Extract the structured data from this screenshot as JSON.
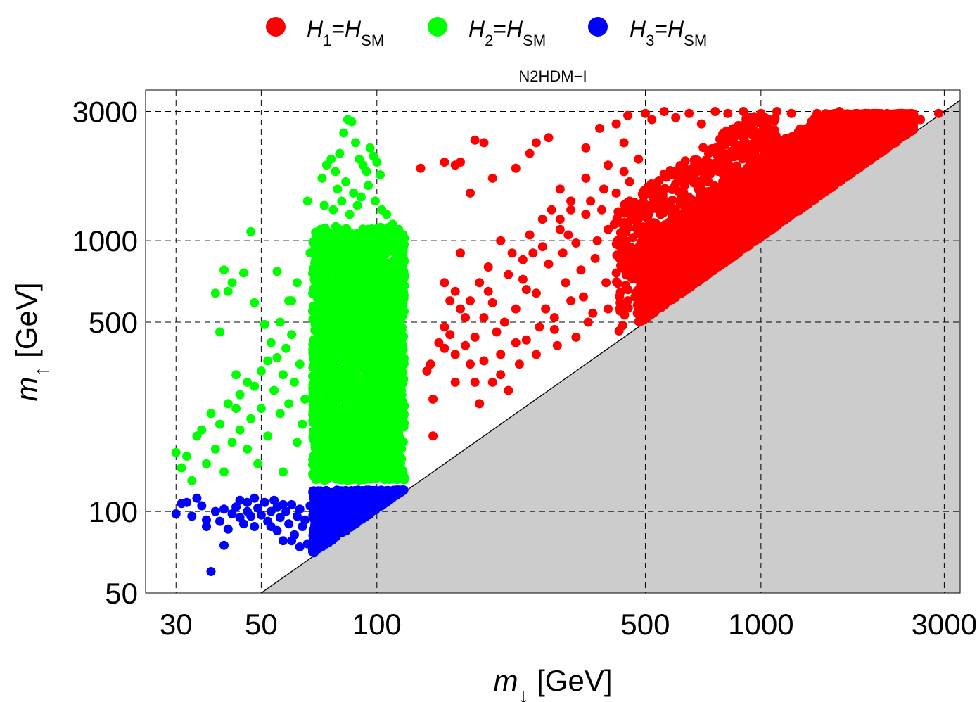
{
  "chart_data": {
    "type": "scatter",
    "title": "N2HDM−I",
    "xlabel": {
      "base": "m",
      "sub": "↓",
      "unit": " [GeV]"
    },
    "ylabel": {
      "base": "m",
      "sub": "↑",
      "unit": " [GeV]"
    },
    "x_scale": "log",
    "y_scale": "log",
    "xlim": [
      25,
      3300
    ],
    "ylim": [
      50,
      3600
    ],
    "x_ticks": [
      30,
      50,
      100,
      500,
      1000,
      3000
    ],
    "x_tick_labels": [
      "30",
      "50",
      "100",
      "500",
      "1000",
      "3000"
    ],
    "y_ticks": [
      50,
      100,
      500,
      1000,
      3000
    ],
    "y_tick_labels": [
      "50",
      "100",
      "500",
      "1000",
      "3000"
    ],
    "grid": true,
    "excluded_region": {
      "description": "m_up < m_down",
      "color": "#cccccc"
    },
    "legend": {
      "placement": "top-center",
      "entries": [
        {
          "id": "h1",
          "H": "H",
          "i": "1",
          "eq": "=",
          "sm_base": "H",
          "sm_sub": "SM",
          "color": "#ff0000"
        },
        {
          "id": "h2",
          "H": "H",
          "i": "2",
          "eq": "=",
          "sm_base": "H",
          "sm_sub": "SM",
          "color": "#00ff00"
        },
        {
          "id": "h3",
          "H": "H",
          "i": "3",
          "eq": "=",
          "sm_base": "H",
          "sm_sub": "SM",
          "color": "#0000ff"
        }
      ]
    },
    "series": [
      {
        "name": "H1=HSM",
        "color": "#ff0000",
        "dense_region": {
          "x_range": [
            480,
            2500
          ],
          "band_above_diagonal_factor": [
            1.0,
            2.0
          ]
        },
        "points": [
          [
            130,
            1850
          ],
          [
            140,
            190
          ],
          [
            150,
            1950
          ],
          [
            160,
            1900
          ],
          [
            165,
            1950
          ],
          [
            180,
            2350
          ],
          [
            190,
            2300
          ],
          [
            175,
            1500
          ],
          [
            200,
            1700
          ],
          [
            230,
            1850
          ],
          [
            250,
            2100
          ],
          [
            260,
            2300
          ],
          [
            280,
            2400
          ],
          [
            300,
            1550
          ],
          [
            320,
            1400
          ],
          [
            350,
            2200
          ],
          [
            380,
            2600
          ],
          [
            420,
            2700
          ],
          [
            450,
            2900
          ],
          [
            500,
            2950
          ],
          [
            520,
            2800
          ],
          [
            560,
            3000
          ],
          [
            600,
            2850
          ],
          [
            650,
            2950
          ],
          [
            700,
            2700
          ],
          [
            760,
            3000
          ],
          [
            820,
            2950
          ],
          [
            900,
            3000
          ],
          [
            1000,
            2950
          ],
          [
            1100,
            3000
          ],
          [
            1200,
            2950
          ],
          [
            1400,
            2950
          ],
          [
            1600,
            3000
          ],
          [
            1800,
            2900
          ],
          [
            2000,
            2950
          ],
          [
            2300,
            2900
          ],
          [
            2600,
            2800
          ],
          [
            2900,
            2950
          ],
          [
            135,
            330
          ],
          [
            138,
            350
          ],
          [
            145,
            420
          ],
          [
            150,
            480
          ],
          [
            155,
            600
          ],
          [
            160,
            650
          ],
          [
            165,
            560
          ],
          [
            170,
            410
          ],
          [
            175,
            350
          ],
          [
            180,
            300
          ],
          [
            185,
            700
          ],
          [
            190,
            520
          ],
          [
            195,
            800
          ],
          [
            200,
            300
          ],
          [
            205,
            460
          ],
          [
            210,
            380
          ],
          [
            220,
            280
          ],
          [
            225,
            900
          ],
          [
            230,
            560
          ],
          [
            240,
            720
          ],
          [
            245,
            430
          ],
          [
            250,
            1050
          ],
          [
            260,
            640
          ],
          [
            270,
            1200
          ],
          [
            280,
            820
          ],
          [
            290,
            520
          ],
          [
            300,
            1100
          ],
          [
            310,
            700
          ],
          [
            320,
            1300
          ],
          [
            330,
            980
          ],
          [
            345,
            620
          ],
          [
            360,
            1400
          ],
          [
            370,
            860
          ],
          [
            390,
            1550
          ],
          [
            400,
            1100
          ],
          [
            420,
            760
          ],
          [
            440,
            1800
          ],
          [
            460,
            1250
          ],
          [
            470,
            900
          ],
          [
            480,
            2000
          ],
          [
            150,
            400
          ],
          [
            155,
            450
          ],
          [
            160,
            380
          ],
          [
            170,
            520
          ],
          [
            180,
            440
          ],
          [
            190,
            360
          ],
          [
            200,
            590
          ],
          [
            215,
            500
          ],
          [
            230,
            420
          ],
          [
            245,
            660
          ],
          [
            260,
            380
          ],
          [
            275,
            560
          ],
          [
            290,
            470
          ],
          [
            305,
            900
          ],
          [
            320,
            600
          ],
          [
            340,
            780
          ],
          [
            355,
            500
          ],
          [
            375,
            1000
          ],
          [
            395,
            700
          ],
          [
            415,
            1150
          ],
          [
            435,
            850
          ],
          [
            455,
            1400
          ],
          [
            470,
            620
          ],
          [
            140,
            260
          ],
          [
            160,
            300
          ],
          [
            185,
            250
          ],
          [
            210,
            320
          ],
          [
            235,
            350
          ],
          [
            265,
            480
          ],
          [
            295,
            410
          ],
          [
            330,
            440
          ],
          [
            365,
            540
          ],
          [
            400,
            560
          ],
          [
            430,
            590
          ],
          [
            450,
            600
          ],
          [
            210,
            1000
          ],
          [
            240,
            850
          ],
          [
            270,
            950
          ],
          [
            300,
            1200
          ],
          [
            350,
            1700
          ],
          [
            400,
            1900
          ],
          [
            440,
            2300
          ],
          [
            150,
            700
          ],
          [
            165,
            900
          ],
          [
            175,
            600
          ],
          [
            195,
            650
          ],
          [
            220,
            750
          ],
          [
            255,
            900
          ],
          [
            285,
            1300
          ],
          [
            315,
            1050
          ],
          [
            350,
            1250
          ],
          [
            385,
            1300
          ],
          [
            420,
            1500
          ],
          [
            455,
            1650
          ]
        ]
      },
      {
        "name": "H2=HSM",
        "color": "#00ff00",
        "dense_region": {
          "x_range": [
            68,
            118
          ],
          "y_range": [
            130,
            1100
          ]
        },
        "points": [
          [
            30,
            165
          ],
          [
            31,
            145
          ],
          [
            32,
            160
          ],
          [
            33,
            130
          ],
          [
            34,
            190
          ],
          [
            35,
            200
          ],
          [
            36,
            150
          ],
          [
            37,
            230
          ],
          [
            38,
            170
          ],
          [
            38,
            640
          ],
          [
            39,
            210
          ],
          [
            40,
            780
          ],
          [
            40,
            140
          ],
          [
            41,
            650
          ],
          [
            41,
            250
          ],
          [
            42,
            180
          ],
          [
            42,
            700
          ],
          [
            43,
            240
          ],
          [
            44,
            200
          ],
          [
            44,
            270
          ],
          [
            45,
            760
          ],
          [
            46,
            170
          ],
          [
            46,
            300
          ],
          [
            47,
            1080
          ],
          [
            47,
            220
          ],
          [
            48,
            590
          ],
          [
            48,
            290
          ],
          [
            49,
            150
          ],
          [
            50,
            330
          ],
          [
            50,
            240
          ],
          [
            51,
            490
          ],
          [
            52,
            360
          ],
          [
            52,
            190
          ],
          [
            53,
            420
          ],
          [
            54,
            280
          ],
          [
            55,
            770
          ],
          [
            55,
            370
          ],
          [
            56,
            230
          ],
          [
            57,
            140
          ],
          [
            57,
            320
          ],
          [
            58,
            400
          ],
          [
            59,
            250
          ],
          [
            60,
            450
          ],
          [
            60,
            600
          ],
          [
            61,
            300
          ],
          [
            62,
            180
          ],
          [
            62,
            700
          ],
          [
            63,
            350
          ],
          [
            64,
            210
          ],
          [
            65,
            260
          ],
          [
            66,
            1400
          ],
          [
            67,
            900
          ],
          [
            39,
            460
          ],
          [
            43,
            320
          ],
          [
            56,
            500
          ],
          [
            59,
            600
          ],
          [
            72,
            1700
          ],
          [
            74,
            1900
          ],
          [
            76,
            2000
          ],
          [
            78,
            1800
          ],
          [
            80,
            2100
          ],
          [
            82,
            2500
          ],
          [
            84,
            2800
          ],
          [
            86,
            2750
          ],
          [
            88,
            2300
          ],
          [
            90,
            2000
          ],
          [
            92,
            1900
          ],
          [
            94,
            1800
          ],
          [
            96,
            2200
          ],
          [
            98,
            2050
          ],
          [
            100,
            1950
          ],
          [
            102,
            1750
          ],
          [
            79,
            1550
          ],
          [
            83,
            1650
          ],
          [
            87,
            1500
          ],
          [
            91,
            1450
          ],
          [
            95,
            1600
          ],
          [
            99,
            1400
          ],
          [
            103,
            1300
          ],
          [
            106,
            1250
          ],
          [
            110,
            1150
          ],
          [
            114,
            1100
          ],
          [
            117,
            1050
          ],
          [
            73,
            1350
          ],
          [
            77,
            1300
          ],
          [
            81,
            1400
          ],
          [
            85,
            1250
          ],
          [
            89,
            1350
          ]
        ]
      },
      {
        "name": "H3=HSM",
        "color": "#0000ff",
        "dense_region": {
          "x_range": [
            68,
            120
          ],
          "y_range": [
            70,
            120
          ]
        },
        "points": [
          [
            30,
            98
          ],
          [
            31,
            107
          ],
          [
            32,
            108
          ],
          [
            33,
            96
          ],
          [
            34,
            112
          ],
          [
            35,
            105
          ],
          [
            36,
            93
          ],
          [
            36,
            88
          ],
          [
            37,
            60
          ],
          [
            38,
            100
          ],
          [
            39,
            92
          ],
          [
            40,
            102
          ],
          [
            40,
            75
          ],
          [
            41,
            86
          ],
          [
            42,
            98
          ],
          [
            43,
            104
          ],
          [
            44,
            110
          ],
          [
            44,
            95
          ],
          [
            45,
            90
          ],
          [
            46,
            108
          ],
          [
            46,
            100
          ],
          [
            47,
            96
          ],
          [
            48,
            112
          ],
          [
            48,
            88
          ],
          [
            49,
            103
          ],
          [
            50,
            97
          ],
          [
            51,
            108
          ],
          [
            52,
            92
          ],
          [
            53,
            100
          ],
          [
            54,
            110
          ],
          [
            55,
            85
          ],
          [
            55,
            104
          ],
          [
            56,
            95
          ],
          [
            57,
            78
          ],
          [
            58,
            100
          ],
          [
            59,
            90
          ],
          [
            60,
            106
          ],
          [
            61,
            82
          ],
          [
            62,
            96
          ],
          [
            63,
            102
          ],
          [
            64,
            88
          ],
          [
            65,
            93
          ],
          [
            66,
            76
          ],
          [
            67,
            105
          ],
          [
            60,
            78
          ],
          [
            63,
            74
          ],
          [
            53,
            88
          ],
          [
            57,
            106
          ]
        ]
      }
    ]
  }
}
